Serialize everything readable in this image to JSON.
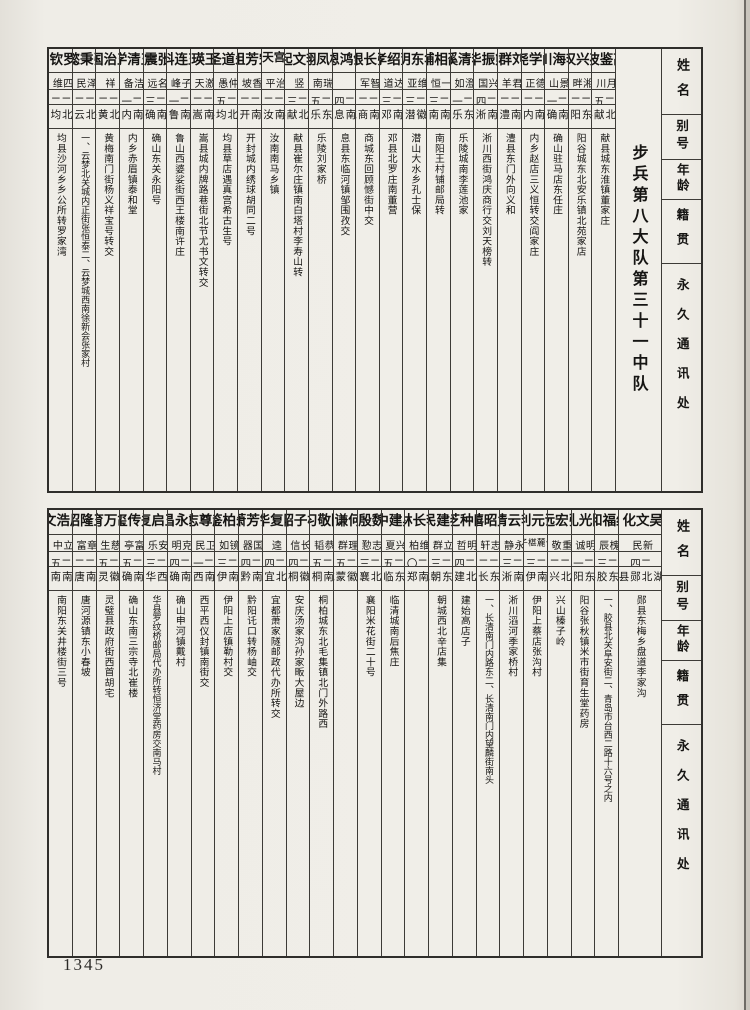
{
  "page_number": "1345",
  "unit_title": "步兵第八大队第三十一中队",
  "column_headers": {
    "name": "姓名",
    "alias": "别号",
    "age": "年龄",
    "native_place": "籍贯",
    "address": "永久通讯处"
  },
  "colors": {
    "paper": "#efede7",
    "ink": "#161513",
    "line": "#3d3b37"
  },
  "sections": [
    {
      "people": [
        {
          "name": "高鉴波",
          "alias": "月川",
          "age": "二五",
          "native": "河北献县",
          "address": "献县城东淮镇董家庄"
        },
        {
          "name": "苑兴汉",
          "alias": "湘畔",
          "age": "二二",
          "native": "山东阳谷",
          "address": "阳谷城东北安乐镇北苑家店"
        },
        {
          "name": "李海川",
          "alias": "景山",
          "age": "二一",
          "native": "河南确山",
          "address": "确山驻马店东任庄"
        },
        {
          "name": "阎学尧",
          "alias": "德正",
          "age": "二二",
          "native": "河南内乡",
          "address": "内乡赵店三义恒转交阎家庄"
        },
        {
          "name": "刘群",
          "alias": "君羊",
          "age": "二二",
          "native": "湖南澧县",
          "address": "澧县东门外向义和"
        },
        {
          "name": "熊振华",
          "alias": "兴国",
          "age": "二四",
          "native": "河南淅川",
          "address": "淅川西街鸿庆商行交刘天榜转"
        },
        {
          "name": "李清溪",
          "alias": "澄如",
          "age": "二一",
          "native": "山东乐陵",
          "address": "乐陵城南李莲池家"
        },
        {
          "name": "邵相辅",
          "alias": "一恒",
          "age": "二三",
          "native": "河南南阳",
          "address": "南阳王村铺邮局转"
        },
        {
          "name": "华东明",
          "alias": "维亚",
          "age": "二三",
          "native": "安徽潜山",
          "address": "潜山大水乡孔士保"
        },
        {
          "name": "董绍孝",
          "alias": "达道",
          "age": "二三",
          "native": "河南邓县",
          "address": "邓县北罗庄南董营"
        },
        {
          "name": "张长银",
          "alias": "智军",
          "age": "二二",
          "native": "河南商城",
          "address": "商城东回顾憾街中交"
        },
        {
          "name": "邹鸿恩",
          "alias": "",
          "age": "二四",
          "native": "河南息县",
          "address": "息县东临河镇邹围孜交"
        },
        {
          "name": "杨凤翔",
          "alias": "瑞南",
          "age": "二五",
          "native": "山东乐陵",
          "address": "乐陵刘家桥"
        },
        {
          "name": "李文起",
          "alias": "竖",
          "age": "二三",
          "native": "河北献县",
          "address": "献县崔尔庄镇南白塔村李寿山转"
        },
        {
          "name": "南宫天赐",
          "alias": "治平",
          "age": "二二",
          "native": "河南汝南",
          "address": "汝南南马乡镇"
        },
        {
          "name": "宋芳祖",
          "alias": "香坡",
          "age": "二二",
          "native": "河南开封",
          "address": "开封城内绣球胡同二号"
        },
        {
          "name": "朱道圣",
          "alias": "仲愚",
          "age": "二五",
          "native": "湖北均县",
          "address": "均县草店遇真宫希古生号"
        },
        {
          "name": "王瑛",
          "alias": "激天",
          "age": "二二",
          "native": "河南嵩县",
          "address": "嵩县城内牌路巷街北节尤书文转交"
        },
        {
          "name": "王连科",
          "alias": "子峰",
          "age": "二一",
          "native": "河南鲁山",
          "address": "鲁山西婆娑街西王楼南许庄"
        },
        {
          "name": "张震",
          "alias": "名远",
          "age": "二三",
          "native": "河南确山",
          "address": "确山东关永阳号"
        },
        {
          "name": "王清学",
          "alias": "洁备",
          "age": "二一",
          "native": "河南内乡",
          "address": "内乡赤眉镇泰和堂"
        },
        {
          "name": "王治国",
          "alias": "祥",
          "age": "二二",
          "native": "湖北黄梅",
          "address": "黄梅南门街杨义祥宝号转交"
        },
        {
          "name": "张秉懿",
          "alias": "泽民",
          "age": "二二",
          "native": "湖北云梦",
          "address": "一、云梦北关城内正街张恒泰二、云梦城西南徐新会张家村"
        },
        {
          "name": "罗钦",
          "alias": "四维",
          "age": "二二",
          "native": "湖北均县",
          "address": "均县沙河乡乡公所转罗家湾"
        }
      ]
    },
    {
      "people": [
        {
          "name": "吴文化",
          "alias": "新民",
          "age": "二四",
          "native": "湖北郧县",
          "address": "郧县东梅乡盘道李家沟"
        },
        {
          "name": "纪福和",
          "alias": "槐辰",
          "age": "二三",
          "native": "山东胶县",
          "address": "一、胶县北关阜安街二、青岛市台西二路十六号之内"
        },
        {
          "name": "陈光礼",
          "alias": "明诚",
          "age": "二一",
          "native": "山东阳谷",
          "address": "阳谷张秋镇米市街育生堂药房"
        },
        {
          "name": "张宏远",
          "alias": "重敬",
          "age": "二二",
          "native": "湖北兴山",
          "address": "兴山榛子岭"
        },
        {
          "name": "谢元利",
          "alias": "伏麓椹子",
          "age": "二三",
          "native": "河南伊阳",
          "address": "伊阳上蔡店张沟村"
        },
        {
          "name": "李云清",
          "alias": "永静",
          "age": "二三",
          "native": "河南淅川",
          "address": "淅川滔河季家桥村"
        },
        {
          "name": "孟昭禧",
          "alias": "志轩",
          "age": "二二",
          "native": "山东长清",
          "address": "一、长清南门内路东二、长清南门内望麟街南头"
        },
        {
          "name": "田种芝",
          "alias": "明哲",
          "age": "二四",
          "native": "湖北建始",
          "address": "建始高店子"
        },
        {
          "name": "秦建民",
          "alias": "立群",
          "age": "二三",
          "native": "山东朝城",
          "address": "朝城西北辛店集"
        },
        {
          "name": "李长林",
          "alias": "维柏",
          "age": "二〇",
          "native": "河南郑州",
          "address": ""
        },
        {
          "name": "黑建中",
          "alias": "兴夏",
          "age": "二五",
          "native": "山东临清",
          "address": "临清城南后焦庄"
        },
        {
          "name": "魏殷",
          "alias": "志懃",
          "age": "二三",
          "native": "湖北襄阳",
          "address": "襄阳米花街二十号"
        },
        {
          "name": "何谦",
          "alias": "理群",
          "age": "二五",
          "native": "安徽蒙城",
          "address": ""
        },
        {
          "name": "陈敬习",
          "alias": "恭韬",
          "age": "二五",
          "native": "河南桐柏",
          "address": "桐柏城东北毛集镇北门外路西"
        },
        {
          "name": "杨子韶",
          "alias": "长信",
          "age": "二四",
          "native": "安徽桐城",
          "address": "安庆汤家沟孙家畈大屋边"
        },
        {
          "name": "陆复华",
          "alias": "逵",
          "age": "二四",
          "native": "湖北宜都",
          "address": "宜都萧家隧邮政代办所转交"
        },
        {
          "name": "钟芳萧",
          "alias": "国器",
          "age": "二四",
          "native": "湖南黔阳",
          "address": "黔阳讬口转杨岫交"
        },
        {
          "name": "朱柏鉴",
          "alias": "镜如",
          "age": "二三",
          "native": "河南伊阳",
          "address": "伊阳上店镇勒村交"
        },
        {
          "name": "赵尊志",
          "alias": "卫民",
          "age": "二一",
          "native": "河南西平",
          "address": "西平西仪封镇南街交"
        },
        {
          "name": "戴永昌",
          "alias": "克明",
          "age": "二四",
          "native": "河南确山",
          "address": "确山申河镇戴村"
        },
        {
          "name": "王启复",
          "alias": "安乐",
          "age": "二三",
          "native": "陕西华县",
          "address": "华县罗纹桥邮局代办所转恒济堂药房交南马村"
        },
        {
          "name": "郑传玺",
          "alias": "富亭",
          "age": "二五",
          "native": "河南确山",
          "address": "确山东南三宗寺北崔楼"
        },
        {
          "name": "胡万育",
          "alias": "慈生",
          "age": "二五",
          "native": "安徽灵璧",
          "address": "灵璧县政府街西首胡宅"
        },
        {
          "name": "王隆昭",
          "alias": "章富",
          "age": "二二",
          "native": "河南唐河",
          "address": "唐河源镇东小春坡"
        },
        {
          "name": "周浩文",
          "alias": "立中",
          "age": "二五",
          "native": "河南南阳",
          "address": "南阳东关井楼街三号"
        }
      ]
    }
  ]
}
